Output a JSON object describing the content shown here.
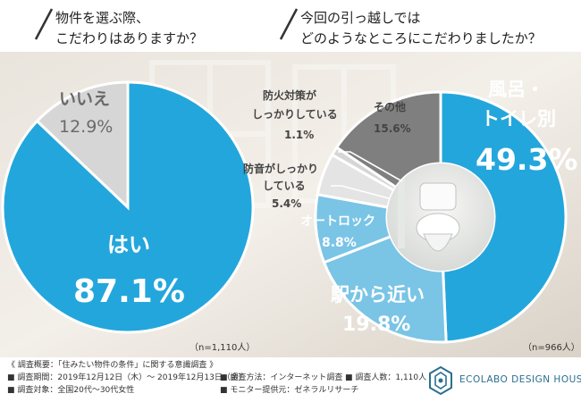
{
  "colors": {
    "accent": "#23a6dc",
    "light_blue": "#7ac4e6",
    "gray_dark": "#7f7f7f",
    "gray_mid": "#b7b7b7",
    "gray_light": "#d6d6d6",
    "gray_pale": "#e4e4e4",
    "brand": "#2b6f8f"
  },
  "chart_data": [
    {
      "type": "pie",
      "title": [
        "物件を選ぶ際、",
        "こだわりはありますか？"
      ],
      "note": "（n=1,110人）",
      "slices": [
        {
          "label": "はい",
          "value": 87.1,
          "display": "87.1%"
        },
        {
          "label": "いいえ",
          "value": 12.9,
          "display": "12.9%"
        }
      ]
    },
    {
      "type": "pie",
      "title": [
        "今回の引っ越しでは",
        "どのようなところにこだわりましたか？"
      ],
      "note": "（n=966人）",
      "slices": [
        {
          "label": [
            "風呂・",
            "トイレ別"
          ],
          "value": 49.3,
          "display": "49.3%"
        },
        {
          "label": [
            "駅から近い"
          ],
          "value": 19.8,
          "display": "19.8%"
        },
        {
          "label": [
            "オートロック"
          ],
          "value": 8.8,
          "display": "8.8%"
        },
        {
          "label": [
            "防音がしっかり",
            "している"
          ],
          "value": 5.4,
          "display": "5.4%"
        },
        {
          "label": [
            "防火対策が",
            "しっかりしている"
          ],
          "value": 1.1,
          "display": "1.1%"
        },
        {
          "label": [
            "その他"
          ],
          "value": 15.6,
          "display": "15.6%"
        }
      ]
    }
  ],
  "survey": {
    "overview": "《 調査概要：「住みたい物件の条件」に関する意識調査 》",
    "period": "■ 調査期間：2019年12月12日（木）～ 2019年12月13日（金）",
    "method": "■ 調査方法：インターネット調査",
    "count": "■ 調査人数：1,110人",
    "target": "■ 調査対象：全国20代～30代女性",
    "provider": "■ モニター提供元：ゼネラルリサーチ"
  },
  "brand": {
    "name": "ECOLABO DESIGN HOUSE",
    "logo_icon": "ecolabo-logo-icon"
  }
}
